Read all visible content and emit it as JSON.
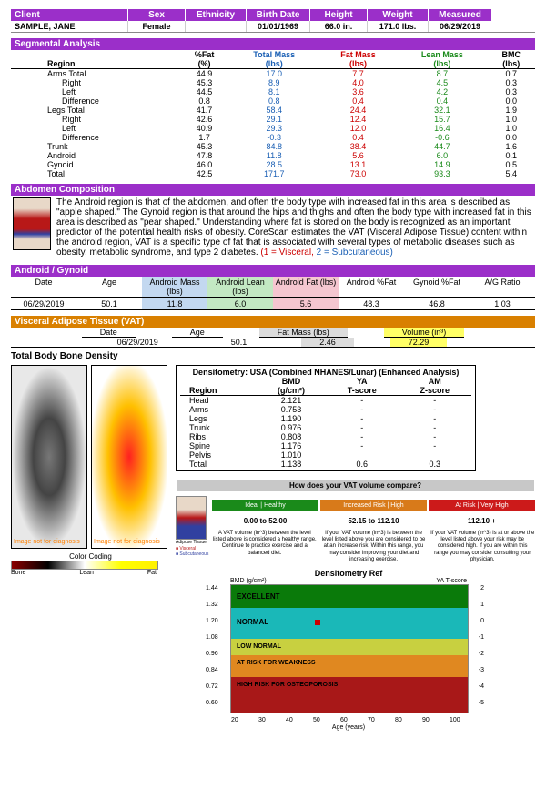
{
  "client": {
    "label": "Client",
    "name": "SAMPLE, JANE",
    "headers": {
      "sex": "Sex",
      "eth": "Ethnicity",
      "bd": "Birth Date",
      "ht": "Height",
      "wt": "Weight",
      "ms": "Measured"
    },
    "values": {
      "sex": "Female",
      "eth": "",
      "bd": "01/01/1969",
      "ht": "66.0 in.",
      "wt": "171.0 lbs.",
      "ms": "06/29/2019"
    }
  },
  "segmental": {
    "title": "Segmental Analysis",
    "headers": {
      "region": "Region",
      "pfat1": "%Fat",
      "pfat2": "(%)",
      "tm1": "Total Mass",
      "tm2": "(lbs)",
      "fm1": "Fat Mass",
      "fm2": "(lbs)",
      "lm1": "Lean Mass",
      "lm2": "(lbs)",
      "bmc1": "BMC",
      "bmc2": "(lbs)"
    },
    "rows": [
      {
        "region": "Arms Total",
        "sub": false,
        "pfat": "44.9",
        "tm": "17.0",
        "fm": "7.7",
        "lm": "8.7",
        "bmc": "0.7"
      },
      {
        "region": "Right",
        "sub": true,
        "pfat": "45.3",
        "tm": "8.9",
        "fm": "4.0",
        "lm": "4.5",
        "bmc": "0.3"
      },
      {
        "region": "Left",
        "sub": true,
        "pfat": "44.5",
        "tm": "8.1",
        "fm": "3.6",
        "lm": "4.2",
        "bmc": "0.3"
      },
      {
        "region": "Difference",
        "sub": true,
        "pfat": "0.8",
        "tm": "0.8",
        "fm": "0.4",
        "lm": "0.4",
        "bmc": "0.0"
      },
      {
        "region": "Legs Total",
        "sub": false,
        "pfat": "41.7",
        "tm": "58.4",
        "fm": "24.4",
        "lm": "32.1",
        "bmc": "1.9"
      },
      {
        "region": "Right",
        "sub": true,
        "pfat": "42.6",
        "tm": "29.1",
        "fm": "12.4",
        "lm": "15.7",
        "bmc": "1.0"
      },
      {
        "region": "Left",
        "sub": true,
        "pfat": "40.9",
        "tm": "29.3",
        "fm": "12.0",
        "lm": "16.4",
        "bmc": "1.0"
      },
      {
        "region": "Difference",
        "sub": true,
        "pfat": "1.7",
        "tm": "-0.3",
        "fm": "0.4",
        "lm": "-0.6",
        "bmc": "0.0"
      },
      {
        "region": "Trunk",
        "sub": false,
        "pfat": "45.3",
        "tm": "84.8",
        "fm": "38.4",
        "lm": "44.7",
        "bmc": "1.6"
      },
      {
        "region": "Android",
        "sub": false,
        "pfat": "47.8",
        "tm": "11.8",
        "fm": "5.6",
        "lm": "6.0",
        "bmc": "0.1"
      },
      {
        "region": "Gynoid",
        "sub": false,
        "pfat": "46.0",
        "tm": "28.5",
        "fm": "13.1",
        "lm": "14.9",
        "bmc": "0.5"
      },
      {
        "region": "Total",
        "sub": false,
        "pfat": "42.5",
        "tm": "171.7",
        "fm": "73.0",
        "lm": "93.3",
        "bmc": "5.4"
      }
    ]
  },
  "abdomen": {
    "title": "Abdomen Composition",
    "text": "The Android region is that of the abdomen, and often the body type with increased fat in this area is described as \"apple shaped.\" The Gynoid region is that around the hips and thighs and often the body type with increased fat in this area is described as \"pear shaped.\" Understanding where fat is stored on the body is recognized as an important predictor of the potential health risks of obesity. CoreScan estimates the VAT (Visceral Adipose Tissue) content within the android region, VAT is a specific type of fat that is associated with several types of metabolic diseases such as obesity, metabolic syndrome, and type 2 diabetes.     ",
    "footnote1": "(1 = Visceral,",
    "footnote2": " 2 = Subcutaneous)"
  },
  "ag": {
    "title": "Android / Gynoid",
    "h": {
      "date": "Date",
      "age": "Age",
      "am": "Android Mass (lbs)",
      "al": "Android Lean (lbs)",
      "af": "Android Fat (lbs)",
      "apf": "Android %Fat",
      "gpf": "Gynoid %Fat",
      "agr": "A/G Ratio"
    },
    "v": {
      "date": "06/29/2019",
      "age": "50.1",
      "am": "11.8",
      "al": "6.0",
      "af": "5.6",
      "apf": "48.3",
      "gpf": "46.8",
      "agr": "1.03"
    }
  },
  "vat": {
    "title": "Visceral Adipose Tissue (VAT)",
    "h": {
      "date": "Date",
      "age": "Age",
      "fm": "Fat Mass (lbs)",
      "vol": "Volume (in³)"
    },
    "v": {
      "date": "06/29/2019",
      "age": "50.1",
      "fm": "2.46",
      "vol": "72.29"
    }
  },
  "bone": {
    "title": "Total Body Bone Density",
    "scan_caption": "Image not for\ndiagnosis",
    "color_coding": "Color Coding",
    "grad": {
      "bone": "Bone",
      "lean": "Lean",
      "fat": "Fat"
    },
    "legend": {
      "at": "Adipose Tissue",
      "vis": "Visceral",
      "sub": "Subcutaneous"
    }
  },
  "densitometry": {
    "title": "Densitometry: USA (Combined NHANES/Lunar) (Enhanced Analysis)",
    "h": {
      "region": "Region",
      "bmd1": "BMD",
      "bmd2": "(g/cm²)",
      "ya": "YA",
      "t": "T-score",
      "am": "AM",
      "z": "Z-score"
    },
    "rows": [
      {
        "region": "Head",
        "bmd": "2.121",
        "t": "-",
        "z": "-"
      },
      {
        "region": "Arms",
        "bmd": "0.753",
        "t": "-",
        "z": "-"
      },
      {
        "region": "Legs",
        "bmd": "1.190",
        "t": "-",
        "z": "-"
      },
      {
        "region": "Trunk",
        "bmd": "0.976",
        "t": "-",
        "z": "-"
      },
      {
        "region": "Ribs",
        "bmd": "0.808",
        "t": "-",
        "z": "-"
      },
      {
        "region": "Spine",
        "bmd": "1.176",
        "t": "-",
        "z": "-"
      },
      {
        "region": "Pelvis",
        "bmd": "1.010",
        "t": "",
        "z": ""
      },
      {
        "region": "Total",
        "bmd": "1.138",
        "t": "0.6",
        "z": "0.3"
      }
    ]
  },
  "compare": {
    "title": "How does your VAT volume compare?",
    "risk": {
      "g": "Ideal | Healthy",
      "o": "Increased Risk | High",
      "r": "At Risk | Very High"
    },
    "range": {
      "g": "0.00 to 52.00",
      "o": "52.15 to 112.10",
      "r": "112.10 +"
    },
    "desc": {
      "g": "A VAT volume (in^3) between the level listed above is considered a healthy range. Continue to practice exercise and a balanced diet.",
      "o": "If your VAT volume (in^3) is between the level listed above you are considered to be at an increase risk. Within this range, you may consider improving your diet and increasing exercise.",
      "r": "If your VAT volume (in^3) is at or above the level listed above your risk may be considered high. If you are within this range you may consider consulting your physician."
    }
  },
  "ref": {
    "title": "Densitometry Ref",
    "ylabel": "BMD (g/cm²)",
    "yrlabel": "YA T-score",
    "xlabel": "Age (years)",
    "bands": {
      "ex": "EXCELLENT",
      "nm": "NORMAL",
      "ln": "LOW NORMAL",
      "ar": "AT RISK FOR WEAKNESS",
      "hr": "HIGH RISK FOR OSTEOPOROSIS"
    },
    "yl": [
      "1.44",
      "1.32",
      "1.20",
      "1.08",
      "0.96",
      "0.84",
      "0.72",
      "0.60"
    ],
    "yr": [
      "2",
      "1",
      "0",
      "-1",
      "-2",
      "-3",
      "-4",
      "-5"
    ],
    "xl": [
      "20",
      "30",
      "40",
      "50",
      "60",
      "70",
      "80",
      "90",
      "100"
    ]
  }
}
